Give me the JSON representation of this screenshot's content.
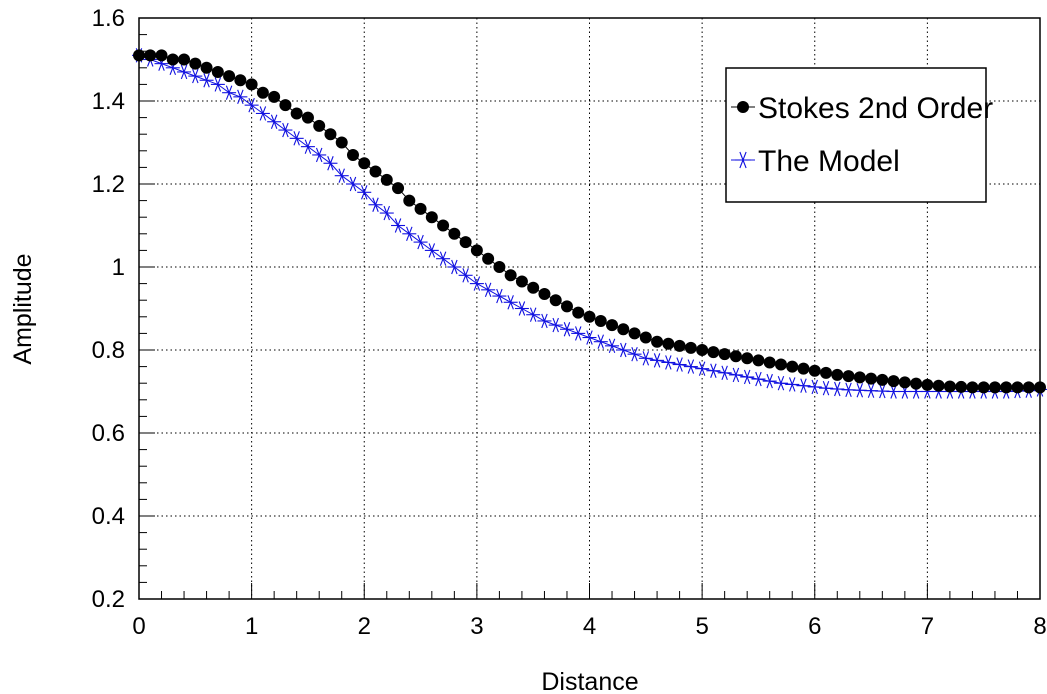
{
  "chart_data": {
    "type": "scatter",
    "xlabel": "Distance",
    "ylabel": "Amplitude",
    "xlim": [
      0,
      8
    ],
    "ylim": [
      0.2,
      1.6
    ],
    "x_ticks": [
      "0",
      "1",
      "2",
      "3",
      "4",
      "5",
      "6",
      "7",
      "8"
    ],
    "y_ticks": [
      "0.2",
      "0.4",
      "0.6",
      "0.8",
      "1",
      "1.2",
      "1.4",
      "1.6"
    ],
    "grid": true,
    "legend_position": "top-right",
    "series": [
      {
        "name": "Stokes 2nd Order",
        "marker": "filled-circle",
        "color": "#000000",
        "x": [
          0,
          0.1,
          0.2,
          0.3,
          0.4,
          0.5,
          0.6,
          0.7,
          0.8,
          0.9,
          1,
          1.1,
          1.2,
          1.3,
          1.4,
          1.5,
          1.6,
          1.7,
          1.8,
          1.9,
          2,
          2.1,
          2.2,
          2.3,
          2.4,
          2.5,
          2.6,
          2.7,
          2.8,
          2.9,
          3,
          3.1,
          3.2,
          3.3,
          3.4,
          3.5,
          3.6,
          3.7,
          3.8,
          3.9,
          4,
          4.1,
          4.2,
          4.3,
          4.4,
          4.5,
          4.6,
          4.7,
          4.8,
          4.9,
          5,
          5.1,
          5.2,
          5.3,
          5.4,
          5.5,
          5.6,
          5.7,
          5.8,
          5.9,
          6,
          6.1,
          6.2,
          6.3,
          6.4,
          6.5,
          6.6,
          6.7,
          6.8,
          6.9,
          7,
          7.1,
          7.2,
          7.3,
          7.4,
          7.5,
          7.6,
          7.7,
          7.8,
          7.9,
          8
        ],
        "y": [
          1.51,
          1.51,
          1.51,
          1.5,
          1.5,
          1.49,
          1.48,
          1.47,
          1.46,
          1.45,
          1.44,
          1.42,
          1.41,
          1.39,
          1.37,
          1.36,
          1.34,
          1.32,
          1.3,
          1.27,
          1.25,
          1.23,
          1.21,
          1.19,
          1.16,
          1.14,
          1.12,
          1.1,
          1.08,
          1.06,
          1.04,
          1.02,
          1.0,
          0.98,
          0.965,
          0.95,
          0.935,
          0.92,
          0.905,
          0.89,
          0.88,
          0.87,
          0.86,
          0.85,
          0.84,
          0.83,
          0.82,
          0.815,
          0.81,
          0.805,
          0.8,
          0.795,
          0.79,
          0.785,
          0.78,
          0.775,
          0.77,
          0.765,
          0.76,
          0.755,
          0.75,
          0.745,
          0.74,
          0.737,
          0.734,
          0.731,
          0.728,
          0.725,
          0.722,
          0.719,
          0.716,
          0.714,
          0.712,
          0.711,
          0.71,
          0.71,
          0.71,
          0.71,
          0.71,
          0.71,
          0.71
        ]
      },
      {
        "name": "The Model",
        "marker": "asterisk",
        "color": "#1010e0",
        "x": [
          0,
          0.1,
          0.2,
          0.3,
          0.4,
          0.5,
          0.6,
          0.7,
          0.8,
          0.9,
          1,
          1.1,
          1.2,
          1.3,
          1.4,
          1.5,
          1.6,
          1.7,
          1.8,
          1.9,
          2,
          2.1,
          2.2,
          2.3,
          2.4,
          2.5,
          2.6,
          2.7,
          2.8,
          2.9,
          3,
          3.1,
          3.2,
          3.3,
          3.4,
          3.5,
          3.6,
          3.7,
          3.8,
          3.9,
          4,
          4.1,
          4.2,
          4.3,
          4.4,
          4.5,
          4.6,
          4.7,
          4.8,
          4.9,
          5,
          5.1,
          5.2,
          5.3,
          5.4,
          5.5,
          5.6,
          5.7,
          5.8,
          5.9,
          6,
          6.1,
          6.2,
          6.3,
          6.4,
          6.5,
          6.6,
          6.7,
          6.8,
          6.9,
          7,
          7.1,
          7.2,
          7.3,
          7.4,
          7.5,
          7.6,
          7.7,
          7.8,
          7.9,
          8
        ],
        "y": [
          1.51,
          1.5,
          1.49,
          1.48,
          1.47,
          1.46,
          1.45,
          1.44,
          1.42,
          1.41,
          1.39,
          1.37,
          1.35,
          1.33,
          1.31,
          1.29,
          1.27,
          1.25,
          1.22,
          1.2,
          1.18,
          1.15,
          1.13,
          1.1,
          1.08,
          1.06,
          1.04,
          1.02,
          1.0,
          0.98,
          0.96,
          0.945,
          0.93,
          0.915,
          0.9,
          0.885,
          0.87,
          0.86,
          0.85,
          0.84,
          0.83,
          0.82,
          0.81,
          0.8,
          0.79,
          0.78,
          0.775,
          0.77,
          0.765,
          0.76,
          0.755,
          0.75,
          0.745,
          0.74,
          0.735,
          0.73,
          0.725,
          0.72,
          0.717,
          0.714,
          0.711,
          0.708,
          0.706,
          0.704,
          0.703,
          0.702,
          0.701,
          0.7,
          0.7,
          0.7,
          0.7,
          0.7,
          0.7,
          0.7,
          0.7,
          0.7,
          0.7,
          0.7,
          0.701,
          0.702,
          0.705
        ]
      }
    ]
  }
}
